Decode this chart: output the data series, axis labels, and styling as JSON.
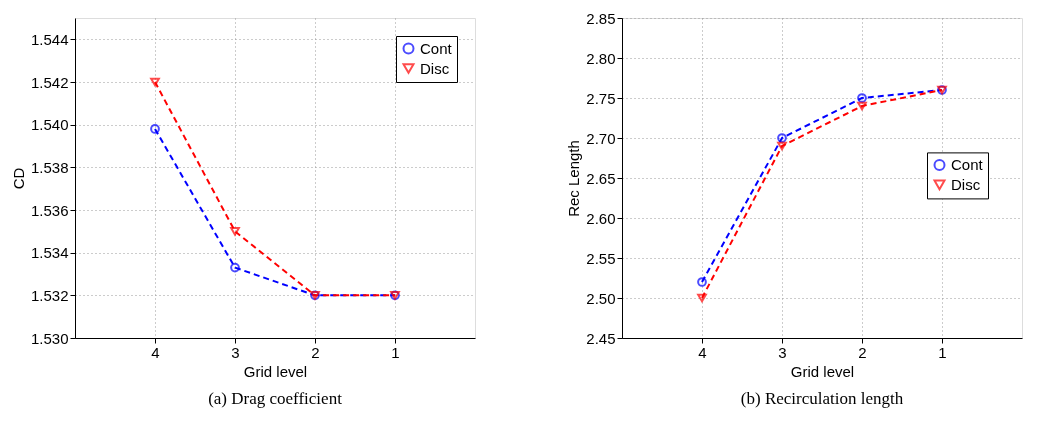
{
  "chart_data": [
    {
      "type": "line",
      "xlabel": "Grid level",
      "ylabel": "CD",
      "annotations": [
        "(a) Drag coefficient"
      ],
      "x": [
        4,
        3,
        2,
        1
      ],
      "xlim": [
        5,
        0
      ],
      "xticks": [
        4,
        3,
        2,
        1
      ],
      "ylim": [
        1.53,
        1.545
      ],
      "yticks": [
        {
          "value": 1.53,
          "label": "1.530"
        },
        {
          "value": 1.532,
          "label": "1.532"
        },
        {
          "value": 1.534,
          "label": "1.534"
        },
        {
          "value": 1.536,
          "label": "1.536"
        },
        {
          "value": 1.538,
          "label": "1.538"
        },
        {
          "value": 1.54,
          "label": "1.540"
        },
        {
          "value": 1.542,
          "label": "1.542"
        },
        {
          "value": 1.544,
          "label": "1.544"
        }
      ],
      "grid": true,
      "legend": "top right",
      "line_style": "dashed",
      "series": [
        {
          "name": "Cont",
          "color": "#0000ff",
          "marker": "circle",
          "values": [
            1.5398,
            1.5333,
            1.532,
            1.532
          ]
        },
        {
          "name": "Disc",
          "color": "#ff0000",
          "marker": "triangle",
          "values": [
            1.542,
            1.535,
            1.532,
            1.532
          ]
        }
      ]
    },
    {
      "type": "line",
      "xlabel": "Grid level",
      "ylabel": "Rec Length",
      "annotations": [
        "(b) Recirculation length"
      ],
      "x": [
        4,
        3,
        2,
        1
      ],
      "xlim": [
        5,
        0
      ],
      "xticks": [
        4,
        3,
        2,
        1
      ],
      "ylim": [
        2.45,
        2.85
      ],
      "yticks": [
        {
          "value": 2.45,
          "label": "2.45"
        },
        {
          "value": 2.5,
          "label": "2.50"
        },
        {
          "value": 2.55,
          "label": "2.55"
        },
        {
          "value": 2.6,
          "label": "2.60"
        },
        {
          "value": 2.65,
          "label": "2.65"
        },
        {
          "value": 2.7,
          "label": "2.70"
        },
        {
          "value": 2.75,
          "label": "2.75"
        },
        {
          "value": 2.8,
          "label": "2.80"
        },
        {
          "value": 2.85,
          "label": "2.85"
        }
      ],
      "grid": true,
      "legend": "right",
      "line_style": "dashed",
      "series": [
        {
          "name": "Cont",
          "color": "#0000ff",
          "marker": "circle",
          "values": [
            2.52,
            2.7,
            2.75,
            2.76
          ]
        },
        {
          "name": "Disc",
          "color": "#ff0000",
          "marker": "triangle",
          "values": [
            2.5,
            2.69,
            2.74,
            2.76
          ]
        }
      ]
    }
  ]
}
